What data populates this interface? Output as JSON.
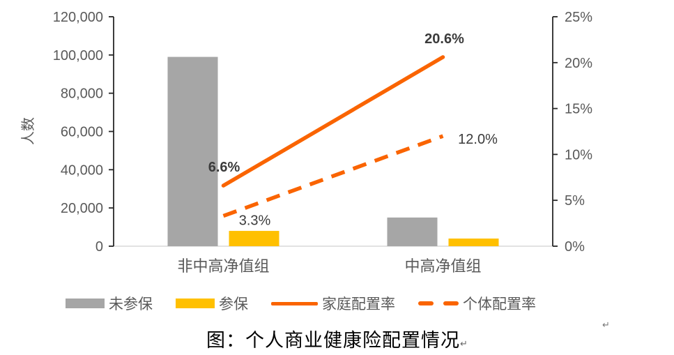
{
  "caption": {
    "text": "图：个人商业健康险配置情况",
    "paragraph_mark": "↵"
  },
  "stray_paragraph_mark": "↵",
  "colors": {
    "bar_gray": "#A6A6A6",
    "bar_gold": "#FFC000",
    "line_orange": "#FA6400",
    "axis_line": "#262626",
    "baseline": "#D9D9D9",
    "tick_text": "#595959",
    "data_label_text": "#3B3B3B",
    "background": "#FFFFFF"
  },
  "chart_data": {
    "type": "bar",
    "subtype": "bar-line combo, dual axis",
    "categories": [
      "非中高净值组",
      "中高净值组"
    ],
    "left_axis": {
      "title": "人数",
      "min": 0,
      "max": 120000,
      "step": 20000,
      "tick_labels": [
        "0",
        "20,000",
        "40,000",
        "60,000",
        "80,000",
        "100,000",
        "120,000"
      ]
    },
    "right_axis": {
      "min": 0,
      "max": 25,
      "step": 5,
      "tick_labels": [
        "0%",
        "5%",
        "10%",
        "15%",
        "20%",
        "25%"
      ]
    },
    "series": [
      {
        "kind": "bar",
        "name": "未参保",
        "color": "#A6A6A6",
        "axis": "left",
        "values": [
          99000,
          15000
        ]
      },
      {
        "kind": "bar",
        "name": "参保",
        "color": "#FFC000",
        "axis": "left",
        "values": [
          8000,
          4000
        ]
      },
      {
        "kind": "line",
        "name": "家庭配置率",
        "color": "#FA6400",
        "style": "solid",
        "axis": "right",
        "values": [
          6.6,
          20.6
        ],
        "labels": [
          "6.6%",
          "20.6%"
        ],
        "label_bold": true
      },
      {
        "kind": "line",
        "name": "个体配置率",
        "color": "#FA6400",
        "style": "dashed",
        "axis": "right",
        "values": [
          3.3,
          12.0
        ],
        "labels": [
          "3.3%",
          "12.0%"
        ],
        "label_bold": false
      }
    ],
    "legend": [
      "未参保",
      "参保",
      "家庭配置率",
      "个体配置率"
    ],
    "legend_position": "bottom",
    "grid": false
  }
}
